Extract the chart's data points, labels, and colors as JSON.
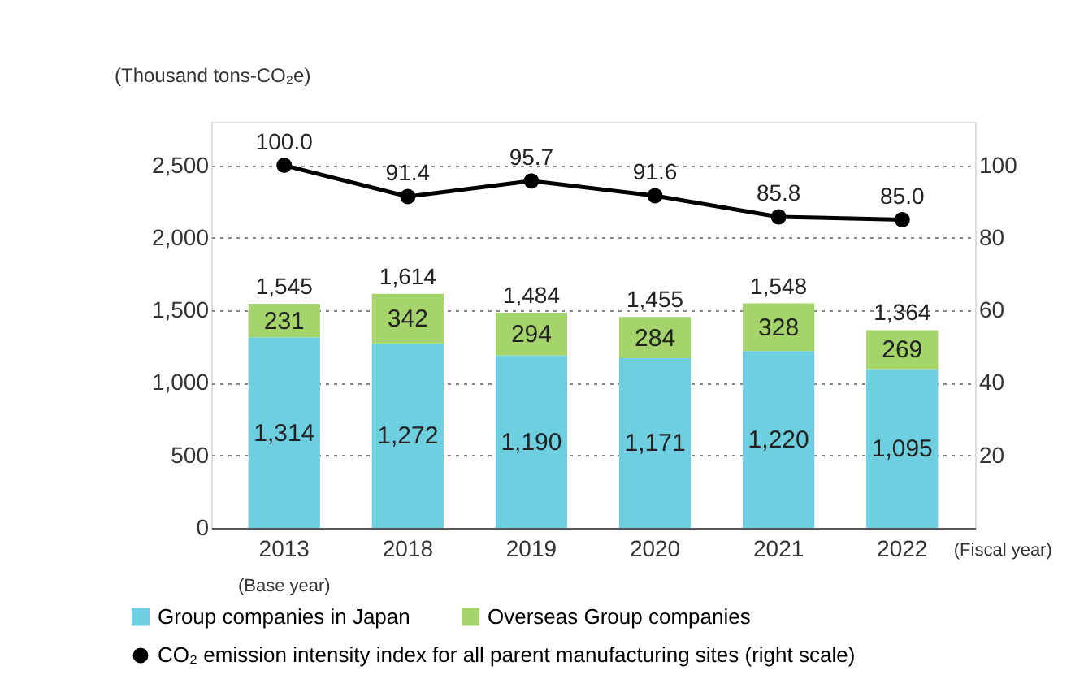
{
  "chart_data": {
    "type": "bar",
    "stacked": true,
    "ylabel": "(Thousand tons-CO₂e)",
    "categories": [
      "2013",
      "2018",
      "2019",
      "2020",
      "2021",
      "2022"
    ],
    "series": [
      {
        "name": "Group companies in Japan",
        "color": "#6dcfe0",
        "values": [
          1314,
          1272,
          1190,
          1171,
          1220,
          1095
        ],
        "value_labels": [
          "1,314",
          "1,272",
          "1,190",
          "1,171",
          "1,220",
          "1,095"
        ]
      },
      {
        "name": "Overseas Group companies",
        "color": "#a5d46a",
        "values": [
          231,
          342,
          294,
          284,
          328,
          269
        ],
        "value_labels": [
          "231",
          "342",
          "294",
          "284",
          "328",
          "269"
        ]
      },
      {
        "name": "CO₂ emission intensity index for all parent manufacturing sites (right scale)",
        "type": "line",
        "axis": "y2",
        "color": "#000000",
        "marker": "circle",
        "values": [
          100.0,
          91.4,
          95.7,
          91.6,
          85.8,
          85.0
        ],
        "value_labels": [
          "100.0",
          "91.4",
          "95.7",
          "91.6",
          "85.8",
          "85.0"
        ]
      }
    ],
    "totals": [
      "1,545",
      "1,614",
      "1,484",
      "1,455",
      "1,548",
      "1,364"
    ],
    "ylim": [
      0,
      2800
    ],
    "yticks": [
      {
        "value": 0,
        "label": "0"
      },
      {
        "value": 500,
        "label": "500"
      },
      {
        "value": 1000,
        "label": "1,000"
      },
      {
        "value": 1500,
        "label": "1,500"
      },
      {
        "value": 2000,
        "label": "2,000"
      },
      {
        "value": 2500,
        "label": "2,500"
      }
    ],
    "y2lim": [
      0,
      112
    ],
    "y2ticks": [
      20,
      40,
      60,
      80,
      100
    ],
    "grid": "y",
    "legend": "bottom",
    "annotations": [
      "(Base year)",
      "(Fiscal year)"
    ]
  }
}
